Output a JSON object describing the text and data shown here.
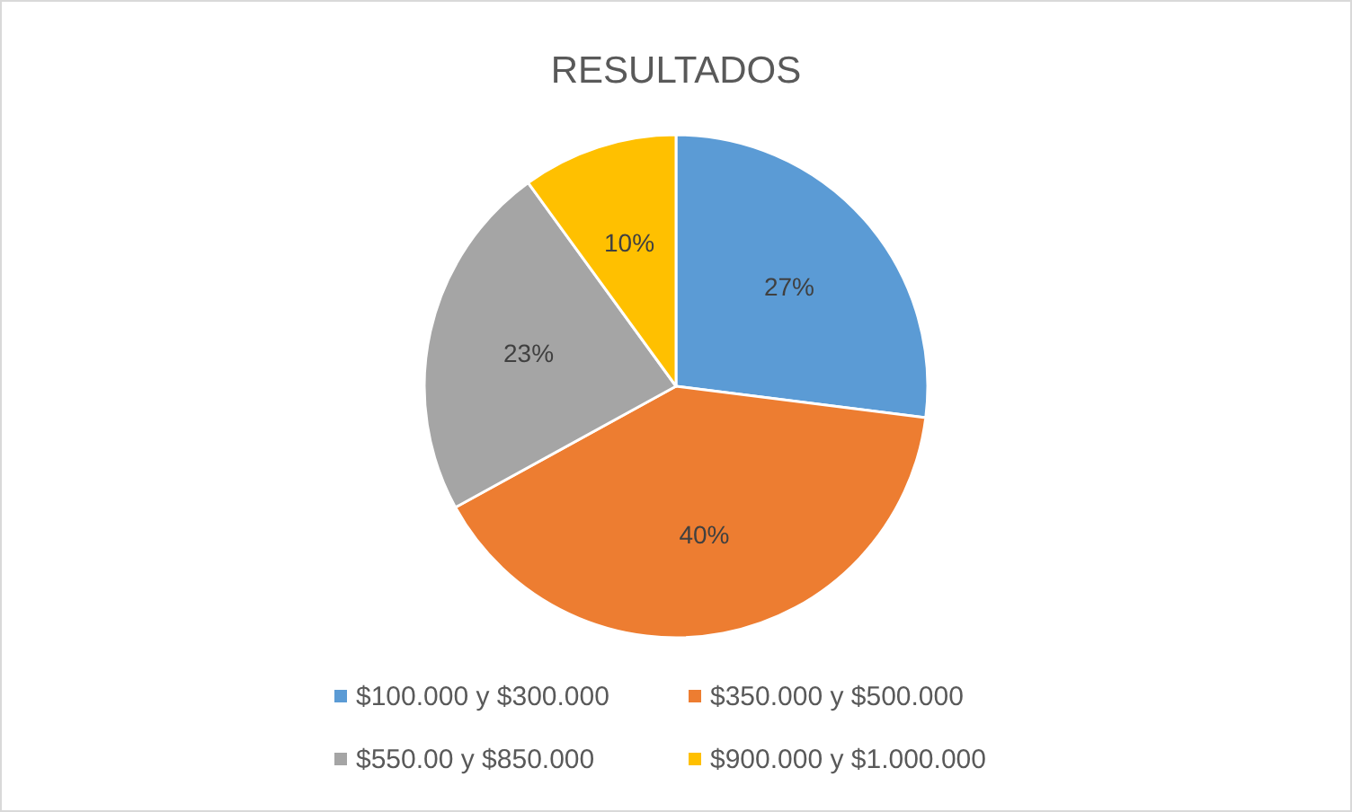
{
  "chart_data": {
    "type": "pie",
    "title": "RESULTADOS",
    "categories": [
      "$100.000 y $300.000",
      "$350.000 y $500.000",
      "$550.00 y $850.000",
      "$900.000 y $1.000.000"
    ],
    "values": [
      27,
      40,
      23,
      10
    ],
    "colors": [
      "#5b9bd5",
      "#ed7d31",
      "#a5a5a5",
      "#ffc000"
    ],
    "value_labels": [
      "27%",
      "40%",
      "23%",
      "10%"
    ],
    "legend": "bottom"
  }
}
